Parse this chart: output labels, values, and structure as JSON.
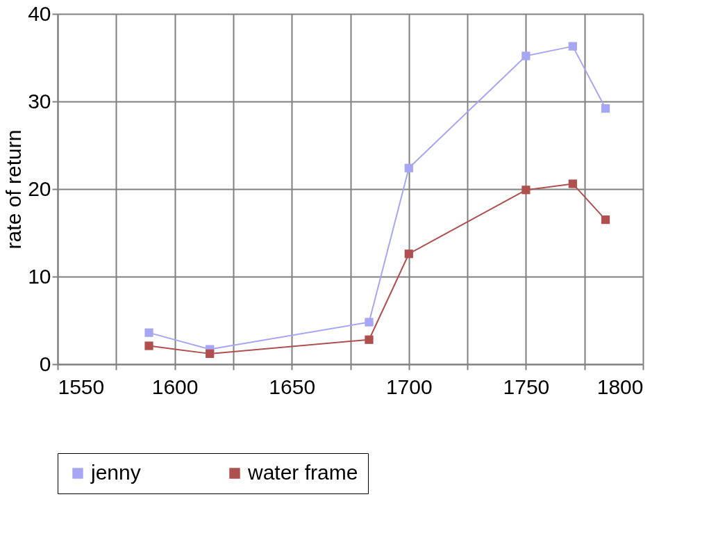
{
  "chart_data": {
    "type": "line",
    "ylabel": "rate of return",
    "xlim": [
      1550,
      1800
    ],
    "xticks": [
      1550,
      {
        "value": 1575,
        "label": null
      },
      1600,
      {
        "value": 1625,
        "label": null
      },
      1650,
      {
        "value": 1675,
        "label": null
      },
      1700,
      {
        "value": 1725,
        "label": null
      },
      1750,
      {
        "value": 1775,
        "label": null
      },
      1800
    ],
    "ylim": [
      0,
      40
    ],
    "yticks": [
      0,
      10,
      20,
      30,
      40
    ],
    "grid": true,
    "legend": "bottom",
    "marker": "square",
    "line_style": "solid",
    "series": [
      {
        "name": "jenny",
        "color": "#a6a6f5",
        "x": [
          1589,
          1615,
          1683,
          1700,
          1750,
          1770,
          1784
        ],
        "values": [
          3.6,
          1.7,
          4.8,
          22.4,
          35.2,
          36.3,
          29.2
        ]
      },
      {
        "name": "water frame",
        "color": "#b0504e",
        "x": [
          1589,
          1615,
          1683,
          1700,
          1750,
          1770,
          1784
        ],
        "values": [
          2.1,
          1.2,
          2.8,
          12.6,
          19.9,
          20.6,
          16.5
        ]
      }
    ]
  }
}
